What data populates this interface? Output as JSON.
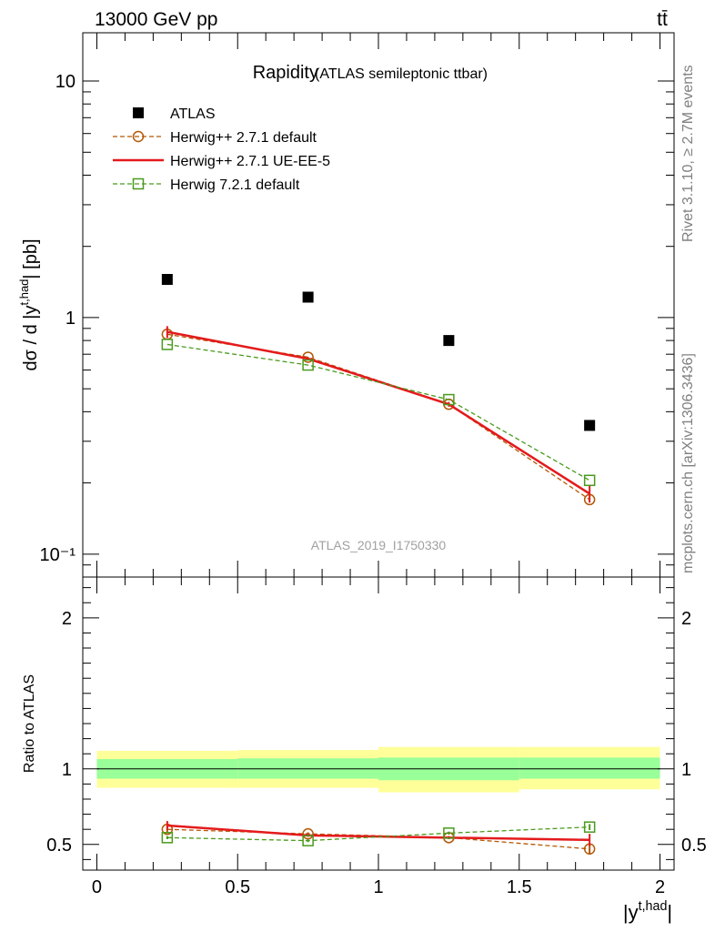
{
  "header": {
    "left": "13000 GeV pp",
    "right": "tt̄"
  },
  "side_labels": {
    "rivet": "Rivet 3.1.10, ≥ 2.7M events",
    "mcplots": "mcplots.cern.ch [arXiv:1306.3436]"
  },
  "analysis_tag": "ATLAS_2019_I1750330",
  "plot_title": {
    "main": "Rapidity",
    "sub": "(ATLAS semileptonic ttbar)"
  },
  "chart_data": [
    {
      "type": "scatter",
      "ylabel": "dσ / d |y^t,had| [pb]",
      "yscale": "log",
      "ylim": [
        0.08,
        16
      ],
      "xlim": [
        -0.05,
        2.05
      ],
      "y_ticks": [
        {
          "value": 0.1,
          "label": "10⁻¹"
        },
        {
          "value": 1,
          "label": "1"
        },
        {
          "value": 10,
          "label": "10"
        }
      ],
      "legend_position": "top-left",
      "x": [
        0.25,
        0.75,
        1.25,
        1.75
      ],
      "series": [
        {
          "name": "ATLAS",
          "color": "#000000",
          "marker": "filled-square",
          "line": "none",
          "values": [
            1.45,
            1.22,
            0.8,
            0.35
          ]
        },
        {
          "name": "Herwig++ 2.7.1 default",
          "color": "#b35806",
          "marker": "open-circle",
          "line": "dashed",
          "values": [
            0.85,
            0.68,
            0.43,
            0.17
          ]
        },
        {
          "name": "Herwig++ 2.7.1 UE-EE-5",
          "color": "#e41a1c",
          "marker": "none",
          "line": "solid",
          "values": [
            0.87,
            0.67,
            0.43,
            0.18
          ],
          "errors": [
            0.05,
            0.01,
            0.01,
            0.015
          ]
        },
        {
          "name": "Herwig 7.2.1 default",
          "color": "#4a9a1e",
          "marker": "open-square",
          "line": "dashed",
          "values": [
            0.77,
            0.63,
            0.45,
            0.205
          ]
        }
      ]
    },
    {
      "type": "line",
      "xlabel": "|y^t,had|",
      "ylabel": "Ratio to ATLAS",
      "xlim": [
        -0.05,
        2.05
      ],
      "ylim": [
        0.33,
        2.27
      ],
      "x_ticks": [
        {
          "value": 0,
          "label": "0"
        },
        {
          "value": 0.5,
          "label": "0.5"
        },
        {
          "value": 1,
          "label": "1"
        },
        {
          "value": 1.5,
          "label": "1.5"
        },
        {
          "value": 2,
          "label": "2"
        }
      ],
      "y_ticks": [
        {
          "value": 0.5,
          "label": "0.5"
        },
        {
          "value": 1,
          "label": "1"
        },
        {
          "value": 2,
          "label": "2"
        }
      ],
      "bands": {
        "bins": [
          [
            0,
            0.5
          ],
          [
            0.5,
            1
          ],
          [
            1,
            1.5
          ],
          [
            1.5,
            2
          ]
        ],
        "stat": [
          [
            0.935,
            1.065
          ],
          [
            0.935,
            1.07
          ],
          [
            0.925,
            1.075
          ],
          [
            0.935,
            1.075
          ]
        ],
        "total": [
          [
            0.875,
            1.12
          ],
          [
            0.875,
            1.125
          ],
          [
            0.845,
            1.145
          ],
          [
            0.865,
            1.145
          ]
        ],
        "stat_color": "#99ff99",
        "total_color": "#ffff99"
      },
      "x": [
        0.25,
        0.75,
        1.25,
        1.75
      ],
      "series": [
        {
          "name": "Herwig++ 2.7.1 default",
          "color": "#b35806",
          "marker": "open-circle",
          "line": "dashed",
          "values": [
            0.6,
            0.57,
            0.545,
            0.47
          ],
          "errors": [
            0.02,
            0.01,
            0.01,
            0.03
          ]
        },
        {
          "name": "Herwig++ 2.7.1 UE-EE-5",
          "color": "#e41a1c",
          "marker": "none",
          "line": "solid",
          "values": [
            0.625,
            0.56,
            0.545,
            0.53
          ],
          "errors": [
            0.03,
            0.01,
            0.01,
            0.04
          ]
        },
        {
          "name": "Herwig 7.2.1 default",
          "color": "#4a9a1e",
          "marker": "open-square",
          "line": "dashed",
          "values": [
            0.545,
            0.525,
            0.575,
            0.615
          ],
          "errors": [
            0.01,
            0.01,
            0.01,
            0.02
          ]
        }
      ]
    }
  ]
}
